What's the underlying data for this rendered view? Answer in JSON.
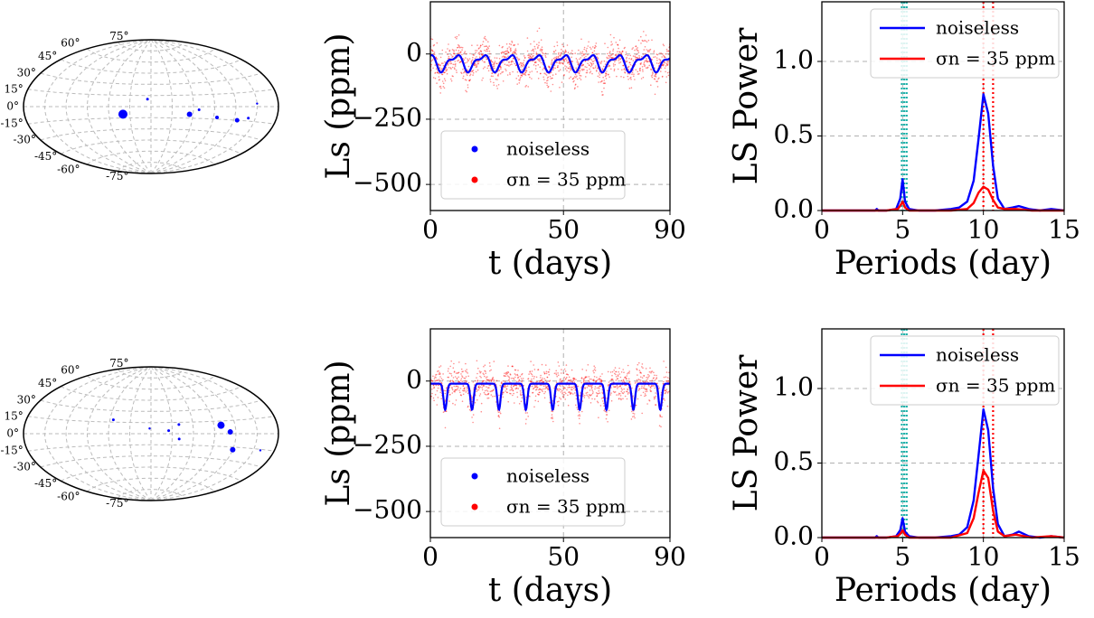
{
  "chart_data": [
    {
      "panel": "row1-map",
      "type": "scatter",
      "projection": "aitoff",
      "lat_labels": [
        "75°",
        "60°",
        "45°",
        "30°",
        "15°",
        "0°",
        "-15°",
        "-30°",
        "-45°",
        "-60°",
        "-75°"
      ],
      "lat_values": [
        75,
        60,
        45,
        30,
        15,
        0,
        -15,
        -30,
        -45,
        -60,
        -75
      ],
      "points": [
        {
          "lon": -40,
          "lat": -10,
          "size": 10
        },
        {
          "lon": -5,
          "lat": 10,
          "size": 3
        },
        {
          "lon": 55,
          "lat": -10,
          "size": 6
        },
        {
          "lon": 68,
          "lat": -4,
          "size": 3
        },
        {
          "lon": 95,
          "lat": -13,
          "size": 4
        },
        {
          "lon": 125,
          "lat": -15,
          "size": 5
        },
        {
          "lon": 140,
          "lat": -12,
          "size": 3
        },
        {
          "lon": 150,
          "lat": 3,
          "size": 2
        }
      ],
      "color": "#0000ff",
      "grid": true
    },
    {
      "panel": "row1-lightcurve",
      "type": "line",
      "xlabel": "t (days)",
      "ylabel": "Ls (ppm)",
      "xlim": [
        0,
        90
      ],
      "ylim": [
        -600,
        200
      ],
      "xticks": [
        0,
        50,
        90
      ],
      "xticklabels": [
        "0",
        "50",
        "90"
      ],
      "yticks": [
        0,
        -250,
        -500
      ],
      "yticklabels": [
        "0",
        "−250",
        "−500"
      ],
      "series": [
        {
          "name": "noiseless",
          "color": "#0000ff",
          "period": 10.1,
          "baseline": -5,
          "amplitude": 55,
          "shape": "sinusoid"
        },
        {
          "name": "σn = 35 ppm",
          "color": "#ff0000",
          "noise_ppm": 35
        }
      ],
      "legend": [
        {
          "label": "noiseless"
        },
        {
          "label": "σn = 35 ppm"
        }
      ],
      "legend_loc": "lower center",
      "grid": true
    },
    {
      "panel": "row1-periodogram",
      "type": "line",
      "xlabel": "Periods (day)",
      "ylabel": "LS Power",
      "xlim": [
        0,
        15
      ],
      "ylim": [
        0,
        1.4
      ],
      "xticks": [
        0,
        5,
        10,
        15
      ],
      "yticks": [
        0.0,
        0.5,
        1.0
      ],
      "yticklabels": [
        "0.0",
        "0.5",
        "1.0"
      ],
      "series": [
        {
          "name": "noiseless",
          "color": "#0000ff",
          "x": [
            0,
            2,
            3.3,
            3.4,
            3.5,
            4,
            4.6,
            4.85,
            5.0,
            5.15,
            5.4,
            6,
            7,
            8,
            8.5,
            9.0,
            9.4,
            9.7,
            10.0,
            10.3,
            10.6,
            10.9,
            11.3,
            11.8,
            12.2,
            12.8,
            13.5,
            14.2,
            15
          ],
          "y": [
            0,
            0,
            0,
            0.01,
            0,
            0,
            0.01,
            0.08,
            0.21,
            0.06,
            0.01,
            0,
            0,
            0.01,
            0.02,
            0.06,
            0.2,
            0.48,
            0.78,
            0.65,
            0.3,
            0.08,
            0.01,
            0.02,
            0.03,
            0.01,
            0.0,
            0.01,
            0.0
          ]
        },
        {
          "name": "σn = 35 ppm",
          "color": "#ff0000",
          "x": [
            0,
            3,
            4,
            4.7,
            4.9,
            5.0,
            5.15,
            5.4,
            6,
            8,
            9.0,
            9.4,
            9.7,
            10.0,
            10.3,
            10.6,
            10.9,
            11.3,
            12,
            13,
            15
          ],
          "y": [
            0,
            0,
            0,
            0.01,
            0.04,
            0.06,
            0.02,
            0,
            0,
            0,
            0.01,
            0.05,
            0.12,
            0.16,
            0.14,
            0.07,
            0.02,
            0.01,
            0.01,
            0,
            0
          ]
        }
      ],
      "vlines": [
        {
          "x": 4.95,
          "color": "#20b2aa"
        },
        {
          "x": 5.1,
          "color": "#20b2aa"
        },
        {
          "x": 5.25,
          "color": "#20b2aa"
        },
        {
          "x": 10.0,
          "color": "#ff0000"
        },
        {
          "x": 10.6,
          "color": "#ff0000"
        }
      ],
      "legend": [
        {
          "label": "noiseless"
        },
        {
          "label": "σn = 35 ppm"
        }
      ],
      "legend_loc": "upper center",
      "grid": true
    },
    {
      "panel": "row2-map",
      "type": "scatter",
      "projection": "aitoff",
      "lat_labels": [
        "75°",
        "60°",
        "45°",
        "30°",
        "15°",
        "0°",
        "-15°",
        "-30°",
        "-45°",
        "-60°",
        "-75°"
      ],
      "lat_values": [
        75,
        60,
        45,
        30,
        15,
        0,
        -15,
        -30,
        -45,
        -60,
        -75
      ],
      "points": [
        {
          "lon": -55,
          "lat": 18,
          "size": 3
        },
        {
          "lon": -2,
          "lat": 7,
          "size": 1
        },
        {
          "lon": 25,
          "lat": 4,
          "size": 3
        },
        {
          "lon": 40,
          "lat": 12,
          "size": 3
        },
        {
          "lon": 100,
          "lat": 10,
          "size": 8
        },
        {
          "lon": 112,
          "lat": 2,
          "size": 6
        },
        {
          "lon": 120,
          "lat": -18,
          "size": 6
        },
        {
          "lon": 40,
          "lat": -7,
          "size": 3
        },
        {
          "lon": 160,
          "lat": -16,
          "size": 1
        }
      ],
      "color": "#0000ff",
      "grid": true
    },
    {
      "panel": "row2-lightcurve",
      "type": "line",
      "xlabel": "t (days)",
      "ylabel": "Ls (ppm)",
      "xlim": [
        0,
        90
      ],
      "ylim": [
        -600,
        200
      ],
      "xticks": [
        0,
        50,
        90
      ],
      "xticklabels": [
        "0",
        "50",
        "90"
      ],
      "yticks": [
        0,
        -250,
        -500
      ],
      "yticklabels": [
        "0",
        "−250",
        "−500"
      ],
      "series": [
        {
          "name": "noiseless",
          "color": "#0000ff",
          "period": 10.1,
          "baseline": -10,
          "amplitude": 100,
          "shape": "dips"
        },
        {
          "name": "σn = 35 ppm",
          "color": "#ff0000",
          "noise_ppm": 35
        }
      ],
      "legend": [
        {
          "label": "noiseless"
        },
        {
          "label": "σn = 35 ppm"
        }
      ],
      "legend_loc": "lower center",
      "grid": true
    },
    {
      "panel": "row2-periodogram",
      "type": "line",
      "xlabel": "Periods (day)",
      "ylabel": "LS Power",
      "xlim": [
        0,
        15
      ],
      "ylim": [
        0,
        1.4
      ],
      "xticks": [
        0,
        5,
        10,
        15
      ],
      "yticks": [
        0.0,
        0.5,
        1.0
      ],
      "yticklabels": [
        "0.0",
        "0.5",
        "1.0"
      ],
      "series": [
        {
          "name": "noiseless",
          "color": "#0000ff",
          "x": [
            0,
            2,
            3.3,
            3.4,
            3.5,
            4,
            4.6,
            4.85,
            5.0,
            5.15,
            5.4,
            6,
            7,
            8,
            8.5,
            9.0,
            9.4,
            9.7,
            10.0,
            10.3,
            10.6,
            10.9,
            11.3,
            11.8,
            12.2,
            12.8,
            13.5,
            14.2,
            15
          ],
          "y": [
            0,
            0,
            0,
            0.01,
            0,
            0,
            0.01,
            0.05,
            0.13,
            0.04,
            0.01,
            0,
            0,
            0.01,
            0.02,
            0.07,
            0.25,
            0.55,
            0.86,
            0.72,
            0.33,
            0.09,
            0.01,
            0.02,
            0.04,
            0.01,
            0.0,
            0.01,
            0.0
          ]
        },
        {
          "name": "σn = 35 ppm",
          "color": "#ff0000",
          "x": [
            0,
            3,
            4,
            4.7,
            4.9,
            5.0,
            5.15,
            5.4,
            6,
            8,
            9.0,
            9.4,
            9.7,
            10.0,
            10.3,
            10.6,
            10.9,
            11.3,
            12,
            13,
            14.2,
            15
          ],
          "y": [
            0,
            0,
            0,
            0.01,
            0.03,
            0.05,
            0.02,
            0,
            0,
            0,
            0.03,
            0.13,
            0.3,
            0.45,
            0.4,
            0.18,
            0.04,
            0.01,
            0.02,
            0,
            0.01,
            0
          ]
        }
      ],
      "vlines": [
        {
          "x": 4.95,
          "color": "#20b2aa"
        },
        {
          "x": 5.1,
          "color": "#20b2aa"
        },
        {
          "x": 5.25,
          "color": "#20b2aa"
        },
        {
          "x": 10.0,
          "color": "#ff0000"
        },
        {
          "x": 10.6,
          "color": "#ff0000"
        }
      ],
      "legend": [
        {
          "label": "noiseless"
        },
        {
          "label": "σn = 35 ppm"
        }
      ],
      "legend_loc": "upper center",
      "grid": true
    }
  ]
}
